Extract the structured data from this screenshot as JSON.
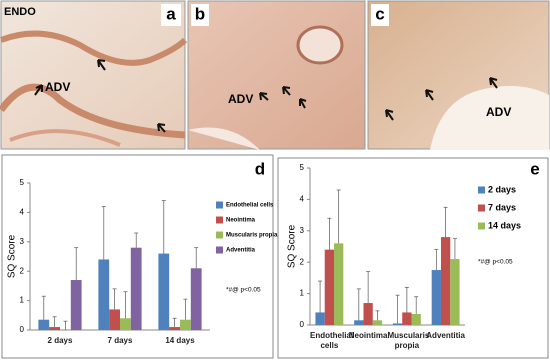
{
  "panels": [
    {
      "letter": "a",
      "labels": [
        "ENDO",
        "ADV"
      ]
    },
    {
      "letter": "b",
      "labels": [
        "ADV"
      ]
    },
    {
      "letter": "c",
      "labels": [
        "ADV"
      ]
    }
  ],
  "chart_data": [
    {
      "type": "bar",
      "panel": "d",
      "ylabel": "SQ Score",
      "note": "*#@ p<0.05",
      "categories": [
        "2 days",
        "7 days",
        "14 days"
      ],
      "series": [
        {
          "name": "Endothelial cells",
          "color": "#4f81bd",
          "values": [
            0.35,
            2.4,
            2.6
          ],
          "errors": [
            0.8,
            1.8,
            1.8
          ]
        },
        {
          "name": "Neointima",
          "color": "#c0504d",
          "values": [
            0.1,
            0.7,
            0.1
          ],
          "errors": [
            0.35,
            0.7,
            0.3
          ]
        },
        {
          "name": "Muscularis propia",
          "color": "#9bbb59",
          "values": [
            0,
            0.4,
            0.35
          ],
          "errors": [
            0.3,
            0.9,
            0.7
          ]
        },
        {
          "name": "Adventitia",
          "color": "#8064a2",
          "values": [
            1.7,
            2.8,
            2.1
          ],
          "errors": [
            1.1,
            0.5,
            0.7
          ]
        }
      ],
      "ylim": [
        0,
        5
      ],
      "yticks": [
        0,
        1,
        2,
        3,
        4,
        5
      ],
      "legend": "right"
    },
    {
      "type": "bar",
      "panel": "e",
      "ylabel": "SQ Score",
      "note": "*#@ p<0.05",
      "categories": [
        "Endothelial cells",
        "Neointima",
        "Muscularis propia",
        "Adventitia"
      ],
      "series": [
        {
          "name": "2 days",
          "color": "#4f81bd",
          "values": [
            0.4,
            0.15,
            0.05,
            1.75
          ],
          "errors": [
            1.0,
            1.0,
            0.9,
            0.65
          ]
        },
        {
          "name": "7 days",
          "color": "#c0504d",
          "values": [
            2.4,
            0.7,
            0.4,
            2.8
          ],
          "errors": [
            1.0,
            1.0,
            0.8,
            0.95
          ]
        },
        {
          "name": "14 days",
          "color": "#9bbb59",
          "values": [
            2.6,
            0.15,
            0.35,
            2.1
          ],
          "errors": [
            1.7,
            0.3,
            0.55,
            0.65
          ]
        }
      ],
      "ylim": [
        0,
        5
      ],
      "yticks": [
        0,
        1,
        2,
        3,
        4,
        5
      ],
      "legend": "right"
    }
  ]
}
